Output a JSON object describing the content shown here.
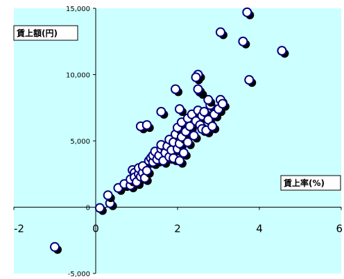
{
  "chart_data": {
    "type": "scatter",
    "title": "",
    "xlabel": "賃上率(%)",
    "ylabel": "賃上額(円)",
    "xlim": [
      -2,
      6
    ],
    "ylim": [
      -5000,
      15000
    ],
    "x_ticks": [
      "-2",
      "0",
      "2",
      "4",
      "6"
    ],
    "y_ticks": [
      "15,000",
      "10,000",
      "5,000",
      "0",
      "-5,000"
    ],
    "x_tick_values": [
      -2,
      0,
      2,
      4,
      6
    ],
    "y_tick_values": [
      15000,
      10000,
      5000,
      0,
      -5000
    ],
    "grid": false,
    "colors": {
      "plot_background": "#ccffff",
      "marker_fill": "#ffffff",
      "marker_edge": "#000080",
      "marker_shadow": "#000000",
      "axis": "#000000"
    },
    "points": [
      [
        -1.0,
        -3000
      ],
      [
        0.1,
        -60
      ],
      [
        0.35,
        300
      ],
      [
        0.3,
        900
      ],
      [
        0.55,
        1450
      ],
      [
        0.7,
        1750
      ],
      [
        0.85,
        1650
      ],
      [
        0.85,
        2100
      ],
      [
        0.9,
        2800
      ],
      [
        0.95,
        2600
      ],
      [
        0.95,
        2250
      ],
      [
        1.0,
        1900
      ],
      [
        1.05,
        2500
      ],
      [
        1.05,
        2950
      ],
      [
        1.1,
        2300
      ],
      [
        1.15,
        2600
      ],
      [
        1.15,
        3100
      ],
      [
        1.2,
        2200
      ],
      [
        1.25,
        2750
      ],
      [
        1.3,
        3500
      ],
      [
        1.35,
        3700
      ],
      [
        1.4,
        3400
      ],
      [
        1.4,
        3900
      ],
      [
        1.45,
        4200
      ],
      [
        1.5,
        3600
      ],
      [
        1.55,
        3900
      ],
      [
        1.6,
        4400
      ],
      [
        1.6,
        4700
      ],
      [
        1.65,
        3500
      ],
      [
        1.7,
        4100
      ],
      [
        1.75,
        4600
      ],
      [
        1.8,
        5100
      ],
      [
        1.8,
        3800
      ],
      [
        1.85,
        4300
      ],
      [
        1.9,
        3700
      ],
      [
        1.9,
        4900
      ],
      [
        1.95,
        5500
      ],
      [
        2.0,
        4400
      ],
      [
        2.0,
        6000
      ],
      [
        2.05,
        3500
      ],
      [
        2.05,
        4800
      ],
      [
        2.1,
        5300
      ],
      [
        2.1,
        6400
      ],
      [
        2.15,
        4100
      ],
      [
        2.2,
        5700
      ],
      [
        2.25,
        6700
      ],
      [
        2.25,
        4900
      ],
      [
        2.3,
        6100
      ],
      [
        2.35,
        7000
      ],
      [
        2.4,
        5400
      ],
      [
        2.45,
        6500
      ],
      [
        2.5,
        7300
      ],
      [
        2.55,
        6200
      ],
      [
        2.6,
        5900
      ],
      [
        2.6,
        6900
      ],
      [
        2.65,
        7200
      ],
      [
        2.7,
        5800
      ],
      [
        2.75,
        6600
      ],
      [
        2.8,
        7700
      ],
      [
        2.85,
        6100
      ],
      [
        2.9,
        7000
      ],
      [
        3.0,
        7400
      ],
      [
        3.05,
        8100
      ],
      [
        3.1,
        7800
      ],
      [
        2.75,
        8100
      ],
      [
        2.5,
        10000
      ],
      [
        2.45,
        9800
      ],
      [
        2.55,
        8700
      ],
      [
        2.5,
        8900
      ],
      [
        1.95,
        8900
      ],
      [
        1.6,
        7200
      ],
      [
        1.1,
        6100
      ],
      [
        1.25,
        6200
      ],
      [
        2.05,
        7400
      ],
      [
        3.05,
        13200
      ],
      [
        3.6,
        12500
      ],
      [
        3.7,
        14700
      ],
      [
        3.75,
        9600
      ],
      [
        4.55,
        11800
      ]
    ]
  }
}
